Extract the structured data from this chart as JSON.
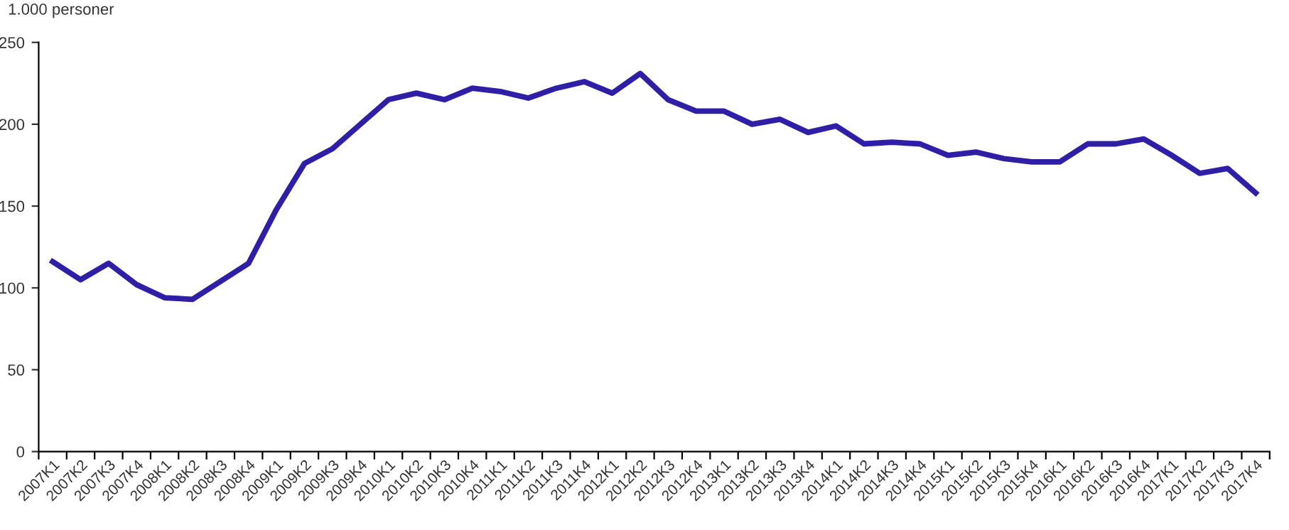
{
  "chart_data": {
    "type": "line",
    "ylabel": "1.000 personer",
    "categories": [
      "2007K1",
      "2007K2",
      "2007K3",
      "2007K4",
      "2008K1",
      "2008K2",
      "2008K3",
      "2008K4",
      "2009K1",
      "2009K2",
      "2009K3",
      "2009K4",
      "2010K1",
      "2010K2",
      "2010K3",
      "2010K4",
      "2011K1",
      "2011K2",
      "2011K3",
      "2011K4",
      "2012K1",
      "2012K2",
      "2012K3",
      "2012K4",
      "2013K1",
      "2013K2",
      "2013K3",
      "2013K4",
      "2014K1",
      "2014K2",
      "2014K3",
      "2014K4",
      "2015K1",
      "2015K2",
      "2015K3",
      "2015K4",
      "2016K1",
      "2016K2",
      "2016K3",
      "2016K4",
      "2017K1",
      "2017K2",
      "2017K3",
      "2017K4"
    ],
    "series": [
      {
        "color": "#2e1fa6",
        "values": [
          116,
          105,
          115,
          102,
          94,
          93,
          104,
          115,
          148,
          176,
          185,
          200,
          215,
          219,
          215,
          222,
          220,
          216,
          222,
          226,
          219,
          231,
          215,
          208,
          208,
          200,
          203,
          195,
          199,
          188,
          189,
          188,
          181,
          183,
          179,
          177,
          177,
          188,
          188,
          191,
          181,
          170,
          173,
          158
        ]
      }
    ],
    "ylim": [
      0,
      250
    ],
    "yticks": [
      0,
      50,
      100,
      150,
      200,
      250
    ],
    "grid": false,
    "legend": false,
    "marker": "none",
    "line_style": "solid"
  }
}
